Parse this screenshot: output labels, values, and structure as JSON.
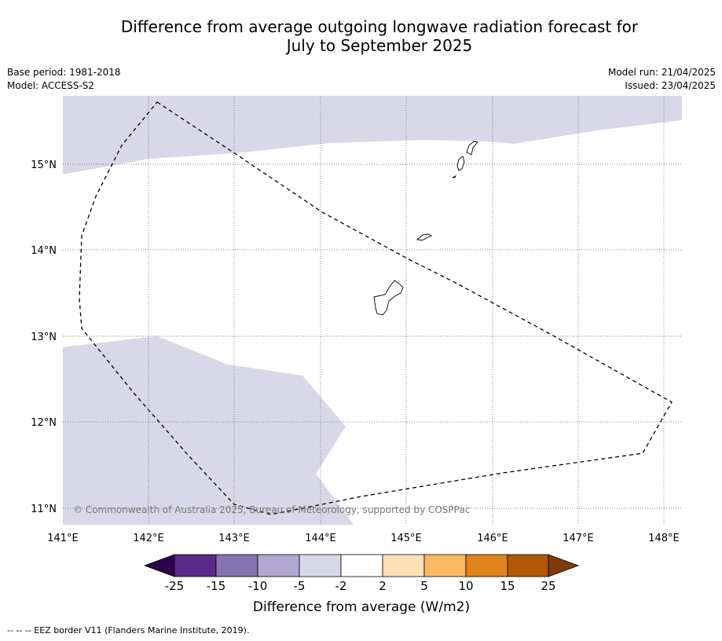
{
  "title_line1": "Difference from average outgoing longwave radiation forecast for",
  "title_line2": "July to September 2025",
  "meta_left": [
    "Base period: 1981-2018",
    "Model: ACCESS-S2"
  ],
  "meta_right": [
    "Model run: 21/04/2025",
    "Issued: 23/04/2025"
  ],
  "copyright": "© Commonwealth of Australia 2025, Bureau of Meteorology, supported by COSPPac",
  "footer": "--  --  -- EEZ border V11 (Flanders Marine Institute, 2019).",
  "map": {
    "x_ticks": [
      "141°E",
      "142°E",
      "143°E",
      "144°E",
      "145°E",
      "146°E",
      "147°E",
      "148°E"
    ],
    "y_ticks": [
      "15°N",
      "14°N",
      "13°N",
      "12°N",
      "11°N"
    ],
    "extent": {
      "lon": [
        141.0,
        148.2
      ],
      "lat": [
        10.8,
        15.75
      ]
    },
    "shading_color": "#d8d8e9"
  },
  "colorbar": {
    "label": "Difference from average (W/m2)",
    "ticks": [
      "-25",
      "-15",
      "-10",
      "-5",
      "-2",
      "2",
      "5",
      "10",
      "15",
      "25"
    ],
    "colors": [
      "#5b2a8a",
      "#8474b0",
      "#b0a8d3",
      "#d8d8e9",
      "#ffffff",
      "#fde0b5",
      "#fdb864",
      "#e0821a",
      "#b35806"
    ],
    "extend_low_color": "#2d004b",
    "extend_high_color": "#7f3b08"
  }
}
